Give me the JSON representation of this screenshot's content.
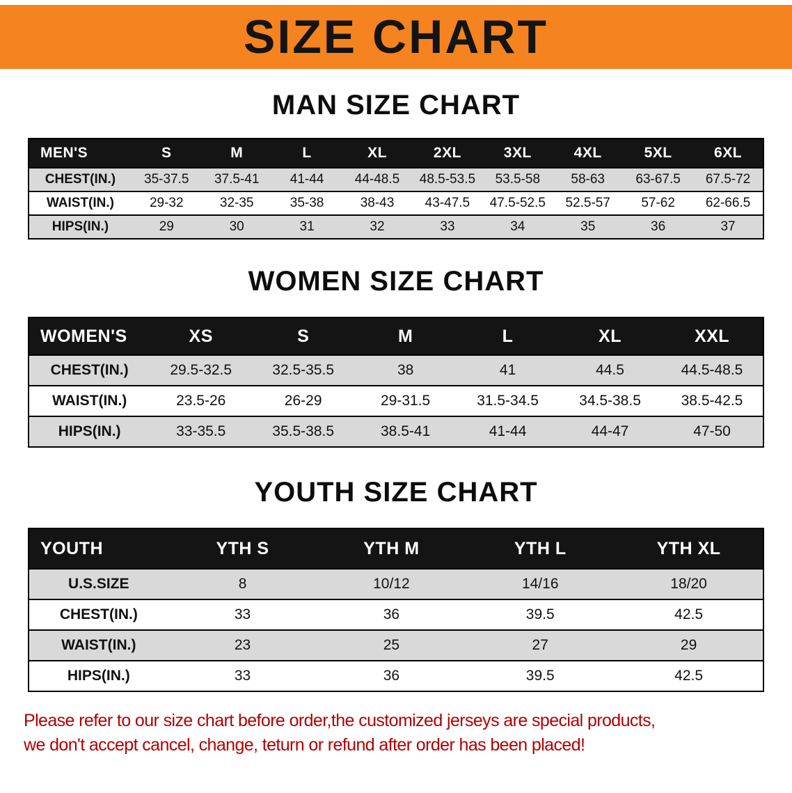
{
  "banner": {
    "title": "SIZE CHART",
    "background_color": "#f5831f"
  },
  "sections": [
    {
      "heading": "MAN SIZE CHART",
      "table": {
        "header": [
          "MEN'S",
          "S",
          "M",
          "L",
          "XL",
          "2XL",
          "3XL",
          "4XL",
          "5XL",
          "6XL"
        ],
        "rows": [
          [
            "CHEST(IN.)",
            "35-37.5",
            "37.5-41",
            "41-44",
            "44-48.5",
            "48.5-53.5",
            "53.5-58",
            "58-63",
            "63-67.5",
            "67.5-72"
          ],
          [
            "WAIST(IN.)",
            "29-32",
            "32-35",
            "35-38",
            "38-43",
            "43-47.5",
            "47.5-52.5",
            "52.5-57",
            "57-62",
            "62-66.5"
          ],
          [
            "HIPS(IN.)",
            "29",
            "30",
            "31",
            "32",
            "33",
            "34",
            "35",
            "36",
            "37"
          ]
        ]
      }
    },
    {
      "heading": "WOMEN SIZE CHART",
      "table": {
        "header": [
          "WOMEN'S",
          "XS",
          "S",
          "M",
          "L",
          "XL",
          "XXL"
        ],
        "rows": [
          [
            "CHEST(IN.)",
            "29.5-32.5",
            "32.5-35.5",
            "38",
            "41",
            "44.5",
            "44.5-48.5"
          ],
          [
            "WAIST(IN.)",
            "23.5-26",
            "26-29",
            "29-31.5",
            "31.5-34.5",
            "34.5-38.5",
            "38.5-42.5"
          ],
          [
            "HIPS(IN.)",
            "33-35.5",
            "35.5-38.5",
            "38.5-41",
            "41-44",
            "44-47",
            "47-50"
          ]
        ]
      }
    },
    {
      "heading": "YOUTH SIZE CHART",
      "table": {
        "header": [
          "YOUTH",
          "YTH S",
          "YTH M",
          "YTH L",
          "YTH XL"
        ],
        "rows": [
          [
            "U.S.SIZE",
            "8",
            "10/12",
            "14/16",
            "18/20"
          ],
          [
            "CHEST(IN.)",
            "33",
            "36",
            "39.5",
            "42.5"
          ],
          [
            "WAIST(IN.)",
            "23",
            "25",
            "27",
            "29"
          ],
          [
            "HIPS(IN.)",
            "33",
            "36",
            "39.5",
            "42.5"
          ]
        ]
      }
    }
  ],
  "disclaimer": {
    "line1": "Please refer to our size chart before order,the customized jerseys are special products,",
    "line2": "we don't accept cancel, change, teturn or refund after order has been placed!",
    "color": "#b30000"
  }
}
